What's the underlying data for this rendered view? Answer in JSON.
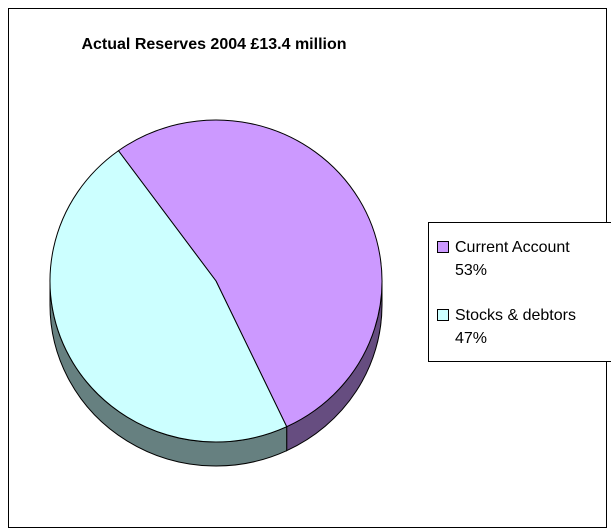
{
  "chart_data": {
    "type": "pie",
    "title": "Actual Reserves 2004 £13.4 million",
    "three_d": true,
    "legend_position": "right",
    "slices": [
      {
        "label": "Current Account",
        "percent_label": "53%",
        "value": 53,
        "color": "#CC99FF",
        "side_color": "#664D80"
      },
      {
        "label": "Stocks & debtors",
        "percent_label": "47%",
        "value": 47,
        "color": "#CCFFFF",
        "side_color": "#668080"
      }
    ]
  }
}
